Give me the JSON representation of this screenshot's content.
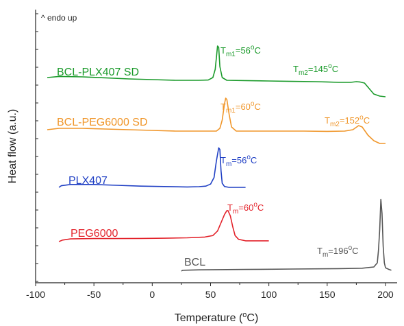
{
  "chart_data": {
    "type": "line",
    "xlabel": "Temperature (°C)",
    "ylabel": "Heat flow (a.u.)",
    "xlim": [
      -100,
      210
    ],
    "xticks": [
      -100,
      -50,
      0,
      50,
      100,
      150,
      200
    ],
    "note": "^ endo up",
    "series": [
      {
        "name": "BCL-PLX407 SD",
        "color": "#1a9a2a",
        "points": [
          [
            -90,
            0.2
          ],
          [
            -80,
            0.28
          ],
          [
            -60,
            0.25
          ],
          [
            -40,
            0.18
          ],
          [
            -20,
            0.1
          ],
          [
            0,
            0.05
          ],
          [
            20,
            0
          ],
          [
            40,
            0
          ],
          [
            48,
            0.02
          ],
          [
            52,
            0.2
          ],
          [
            54,
            0.8
          ],
          [
            56,
            2.5
          ],
          [
            57,
            2.4
          ],
          [
            58,
            1.0
          ],
          [
            60,
            0.2
          ],
          [
            64,
            0
          ],
          [
            80,
            -0.02
          ],
          [
            100,
            -0.05
          ],
          [
            120,
            -0.08
          ],
          [
            140,
            -0.1
          ],
          [
            150,
            -0.12
          ],
          [
            160,
            -0.15
          ],
          [
            170,
            -0.15
          ],
          [
            175,
            -0.1
          ],
          [
            178,
            -0.12
          ],
          [
            182,
            -0.2
          ],
          [
            186,
            -0.6
          ],
          [
            190,
            -1.0
          ],
          [
            195,
            -1.15
          ],
          [
            200,
            -1.2
          ]
        ],
        "annotation": {
          "text": "T",
          "sub": "m1",
          "value": "=56",
          "unit": "°C",
          "x": 56
        },
        "annotation2": {
          "text": "T",
          "sub": "m2",
          "value": "=145",
          "unit": "°C",
          "x": 145
        }
      },
      {
        "name": "BCL-PEG6000 SD",
        "color": "#f0962a",
        "points": [
          [
            -90,
            0.1
          ],
          [
            -80,
            0.2
          ],
          [
            -60,
            0.2
          ],
          [
            -40,
            0.15
          ],
          [
            -20,
            0.1
          ],
          [
            0,
            0.05
          ],
          [
            20,
            0
          ],
          [
            40,
            0
          ],
          [
            55,
            0
          ],
          [
            58,
            0.2
          ],
          [
            60,
            0.8
          ],
          [
            62,
            2.0
          ],
          [
            63,
            2.4
          ],
          [
            64,
            2.3
          ],
          [
            66,
            1.2
          ],
          [
            68,
            0.3
          ],
          [
            72,
            0
          ],
          [
            100,
            0
          ],
          [
            130,
            0
          ],
          [
            150,
            -0.02
          ],
          [
            165,
            0
          ],
          [
            172,
            0.1
          ],
          [
            177,
            0.4
          ],
          [
            180,
            0.3
          ],
          [
            185,
            -0.3
          ],
          [
            190,
            -0.7
          ],
          [
            195,
            -0.9
          ],
          [
            200,
            -0.9
          ]
        ],
        "annotation": {
          "text": "T",
          "sub": "m1",
          "value": "=60",
          "unit": "°C",
          "x": 60
        },
        "annotation2": {
          "text": "T",
          "sub": "m2",
          "value": "=152",
          "unit": "°C",
          "x": 152
        }
      },
      {
        "name": "PLX407",
        "color": "#1f3fc4",
        "points": [
          [
            -80,
            0
          ],
          [
            -78,
            0.2
          ],
          [
            -70,
            0.35
          ],
          [
            -50,
            0.35
          ],
          [
            -30,
            0.25
          ],
          [
            -10,
            0.15
          ],
          [
            10,
            0.1
          ],
          [
            30,
            0.05
          ],
          [
            40,
            0.08
          ],
          [
            46,
            0.15
          ],
          [
            50,
            0.4
          ],
          [
            53,
            1.2
          ],
          [
            55,
            3.2
          ],
          [
            57,
            4.8
          ],
          [
            58,
            4.6
          ],
          [
            59,
            2.0
          ],
          [
            60,
            0.5
          ],
          [
            62,
            0.1
          ],
          [
            66,
            0
          ],
          [
            80,
            0
          ]
        ],
        "annotation": {
          "text": "T",
          "sub": "m",
          "value": "=56",
          "unit": "°C",
          "x": 56
        }
      },
      {
        "name": "PEG6000",
        "color": "#e3222a",
        "points": [
          [
            -80,
            0
          ],
          [
            -77,
            0.2
          ],
          [
            -70,
            0.35
          ],
          [
            -50,
            0.4
          ],
          [
            -30,
            0.4
          ],
          [
            -10,
            0.42
          ],
          [
            10,
            0.45
          ],
          [
            30,
            0.5
          ],
          [
            45,
            0.6
          ],
          [
            52,
            0.8
          ],
          [
            56,
            1.4
          ],
          [
            59,
            2.5
          ],
          [
            62,
            3.6
          ],
          [
            64,
            4.1
          ],
          [
            65,
            4.1
          ],
          [
            67,
            3.4
          ],
          [
            69,
            2.0
          ],
          [
            71,
            0.8
          ],
          [
            74,
            0.3
          ],
          [
            80,
            0.1
          ],
          [
            100,
            0.1
          ]
        ],
        "annotation": {
          "text": "T",
          "sub": "m",
          "value": "=60",
          "unit": "°C",
          "x": 60
        }
      },
      {
        "name": "BCL",
        "color": "#555555",
        "points": [
          [
            25,
            0
          ],
          [
            26,
            0.1
          ],
          [
            40,
            0.15
          ],
          [
            80,
            0.2
          ],
          [
            120,
            0.25
          ],
          [
            160,
            0.3
          ],
          [
            180,
            0.35
          ],
          [
            190,
            0.5
          ],
          [
            193,
            1.0
          ],
          [
            194,
            2.5
          ],
          [
            195,
            5.0
          ],
          [
            196,
            8.7
          ],
          [
            197,
            7.0
          ],
          [
            198,
            3.0
          ],
          [
            199,
            1.0
          ],
          [
            200,
            0.4
          ],
          [
            203,
            0.2
          ],
          [
            205,
            0.1
          ]
        ],
        "annotation": {
          "text": "T",
          "sub": "m",
          "value": "=196",
          "unit": "°C",
          "x": 196
        }
      }
    ]
  }
}
